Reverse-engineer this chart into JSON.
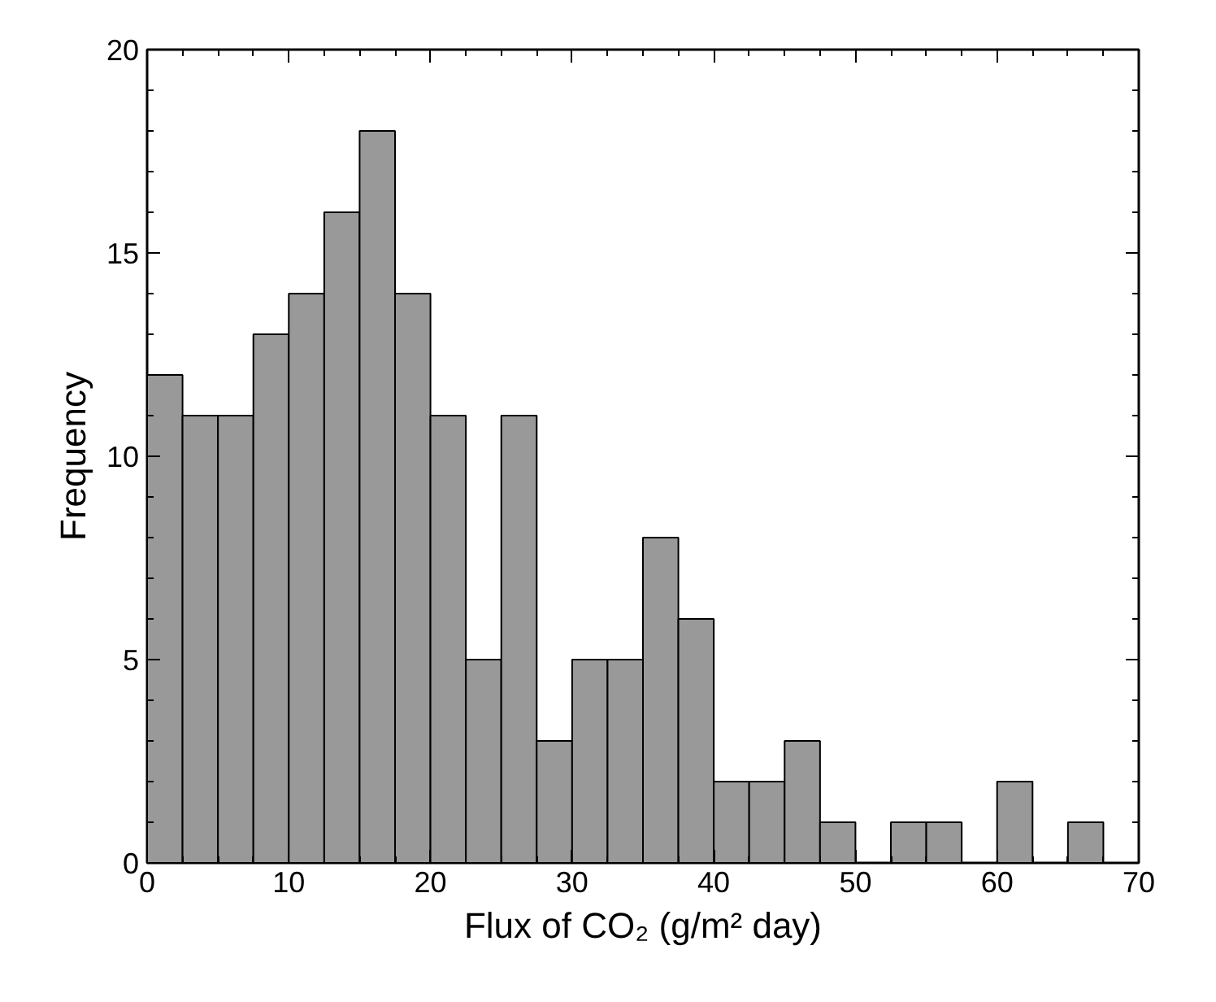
{
  "chart_data": {
    "type": "histogram",
    "xlabel": "Flux of CO₂ (g/m² day)",
    "ylabel": "Frequency",
    "bins": [
      0,
      2.5,
      5,
      7.5,
      10,
      12.5,
      15,
      17.5,
      20,
      22.5,
      25,
      27.5,
      30,
      32.5,
      35,
      37.5,
      40,
      42.5,
      45,
      47.5,
      50,
      52.5,
      55,
      57.5,
      60,
      62.5,
      65,
      67.5
    ],
    "values": [
      12,
      11,
      11,
      13,
      14,
      16,
      18,
      14,
      11,
      5,
      11,
      3,
      5,
      5,
      8,
      6,
      2,
      2,
      3,
      1,
      0,
      1,
      1,
      0,
      2,
      0,
      1
    ],
    "color": "#999999",
    "xlim": [
      0,
      70
    ],
    "xticks": [
      0,
      10,
      20,
      30,
      40,
      50,
      60,
      70
    ],
    "ylim": [
      0,
      20
    ],
    "yticks": [
      0,
      5,
      10,
      15,
      20
    ],
    "grid": false
  }
}
